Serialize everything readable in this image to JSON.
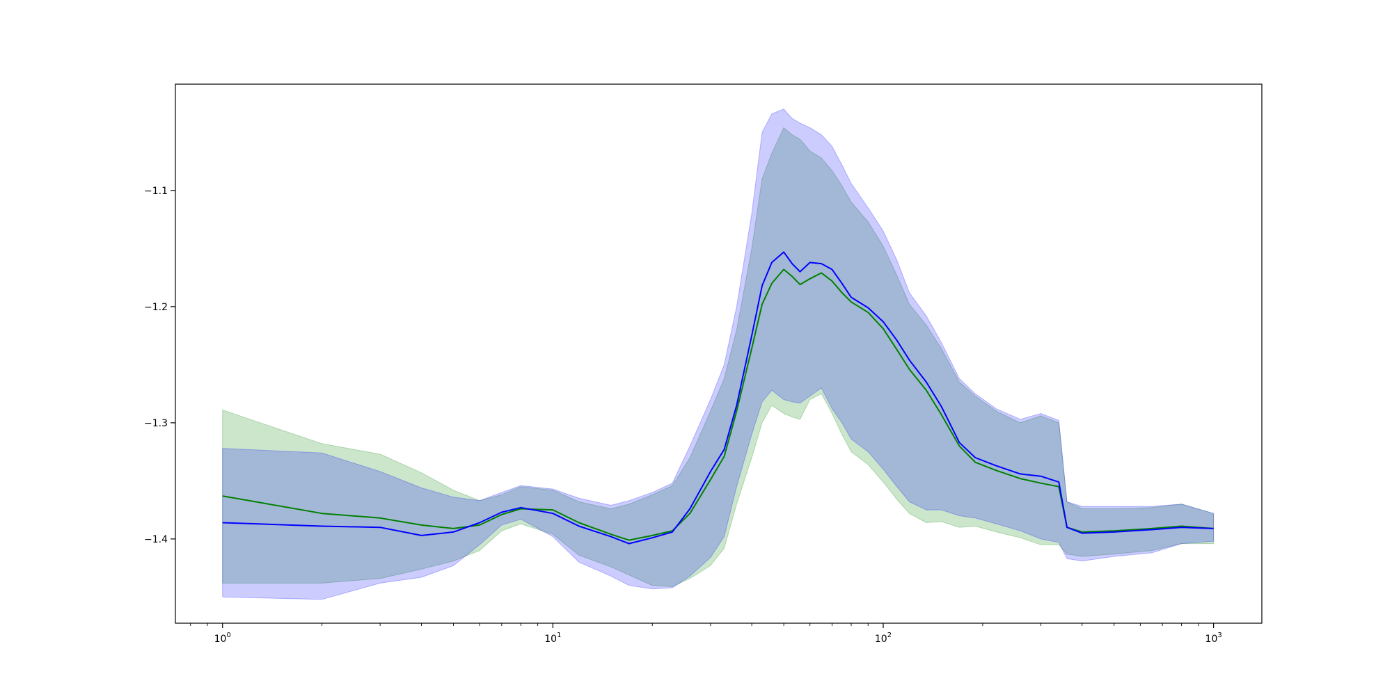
{
  "chart_data": {
    "type": "line",
    "title": "",
    "xlabel": "",
    "ylabel": "",
    "x_scale": "log",
    "xlim": [
      0.72,
      1400
    ],
    "ylim": [
      -1.4725,
      -1.0085
    ],
    "grid": false,
    "legend": "none",
    "x_ticks": [
      {
        "value": 1,
        "base": "10",
        "exp": "0"
      },
      {
        "value": 10,
        "base": "10",
        "exp": "1"
      },
      {
        "value": 100,
        "base": "10",
        "exp": "2"
      },
      {
        "value": 1000,
        "base": "10",
        "exp": "3"
      }
    ],
    "y_ticks": [
      {
        "value": -1.1,
        "label": "−1.1"
      },
      {
        "value": -1.2,
        "label": "−1.2"
      },
      {
        "value": -1.3,
        "label": "−1.3"
      },
      {
        "value": -1.4,
        "label": "−1.4"
      }
    ],
    "x": [
      1,
      2,
      3,
      4,
      5,
      6,
      7,
      8,
      10,
      12,
      15,
      17,
      20,
      23,
      26,
      30,
      33,
      36,
      40,
      43,
      46,
      50,
      53,
      56,
      60,
      65,
      70,
      75,
      80,
      90,
      100,
      110,
      120,
      135,
      150,
      170,
      190,
      220,
      260,
      300,
      340,
      360,
      400,
      500,
      650,
      800,
      1000
    ],
    "series": [
      {
        "color": "#008000",
        "band_color": "#008000",
        "mean": [
          -1.363,
          -1.378,
          -1.382,
          -1.388,
          -1.391,
          -1.388,
          -1.379,
          -1.374,
          -1.375,
          -1.386,
          -1.396,
          -1.401,
          -1.397,
          -1.393,
          -1.378,
          -1.349,
          -1.329,
          -1.29,
          -1.236,
          -1.198,
          -1.18,
          -1.168,
          -1.174,
          -1.181,
          -1.176,
          -1.171,
          -1.178,
          -1.188,
          -1.196,
          -1.205,
          -1.219,
          -1.237,
          -1.254,
          -1.272,
          -1.293,
          -1.32,
          -1.334,
          -1.341,
          -1.348,
          -1.352,
          -1.355,
          -1.39,
          -1.394,
          -1.393,
          -1.391,
          -1.389,
          -1.391
        ],
        "upper": [
          -1.289,
          -1.318,
          -1.327,
          -1.343,
          -1.358,
          -1.367,
          -1.362,
          -1.355,
          -1.358,
          -1.368,
          -1.374,
          -1.37,
          -1.362,
          -1.354,
          -1.33,
          -1.29,
          -1.262,
          -1.22,
          -1.15,
          -1.09,
          -1.068,
          -1.046,
          -1.052,
          -1.056,
          -1.066,
          -1.072,
          -1.083,
          -1.096,
          -1.11,
          -1.127,
          -1.148,
          -1.173,
          -1.198,
          -1.216,
          -1.236,
          -1.265,
          -1.277,
          -1.29,
          -1.3,
          -1.294,
          -1.3,
          -1.368,
          -1.374,
          -1.374,
          -1.373,
          -1.37,
          -1.378
        ],
        "lower": [
          -1.438,
          -1.438,
          -1.434,
          -1.426,
          -1.419,
          -1.41,
          -1.393,
          -1.387,
          -1.396,
          -1.414,
          -1.424,
          -1.431,
          -1.44,
          -1.441,
          -1.434,
          -1.423,
          -1.408,
          -1.37,
          -1.33,
          -1.3,
          -1.285,
          -1.292,
          -1.295,
          -1.297,
          -1.28,
          -1.275,
          -1.292,
          -1.31,
          -1.325,
          -1.336,
          -1.351,
          -1.366,
          -1.378,
          -1.386,
          -1.385,
          -1.39,
          -1.389,
          -1.394,
          -1.399,
          -1.405,
          -1.405,
          -1.413,
          -1.415,
          -1.413,
          -1.41,
          -1.404,
          -1.404
        ]
      },
      {
        "color": "#0000ff",
        "band_color": "#0000ff",
        "mean": [
          -1.386,
          -1.389,
          -1.39,
          -1.397,
          -1.394,
          -1.386,
          -1.377,
          -1.373,
          -1.378,
          -1.389,
          -1.398,
          -1.404,
          -1.399,
          -1.394,
          -1.374,
          -1.342,
          -1.323,
          -1.285,
          -1.225,
          -1.182,
          -1.162,
          -1.153,
          -1.163,
          -1.17,
          -1.162,
          -1.163,
          -1.168,
          -1.18,
          -1.192,
          -1.201,
          -1.213,
          -1.229,
          -1.246,
          -1.265,
          -1.286,
          -1.317,
          -1.33,
          -1.337,
          -1.344,
          -1.346,
          -1.351,
          -1.39,
          -1.395,
          -1.394,
          -1.392,
          -1.39,
          -1.391
        ],
        "upper": [
          -1.322,
          -1.326,
          -1.342,
          -1.356,
          -1.364,
          -1.367,
          -1.36,
          -1.354,
          -1.357,
          -1.365,
          -1.371,
          -1.367,
          -1.36,
          -1.352,
          -1.32,
          -1.28,
          -1.25,
          -1.2,
          -1.12,
          -1.05,
          -1.034,
          -1.03,
          -1.038,
          -1.042,
          -1.046,
          -1.052,
          -1.062,
          -1.078,
          -1.094,
          -1.115,
          -1.135,
          -1.16,
          -1.188,
          -1.208,
          -1.231,
          -1.262,
          -1.275,
          -1.288,
          -1.297,
          -1.292,
          -1.298,
          -1.368,
          -1.372,
          -1.372,
          -1.372,
          -1.37,
          -1.378
        ],
        "lower": [
          -1.45,
          -1.452,
          -1.438,
          -1.433,
          -1.423,
          -1.405,
          -1.388,
          -1.383,
          -1.398,
          -1.42,
          -1.432,
          -1.44,
          -1.443,
          -1.442,
          -1.432,
          -1.416,
          -1.398,
          -1.355,
          -1.31,
          -1.282,
          -1.272,
          -1.28,
          -1.282,
          -1.283,
          -1.277,
          -1.27,
          -1.288,
          -1.3,
          -1.314,
          -1.325,
          -1.34,
          -1.355,
          -1.368,
          -1.375,
          -1.375,
          -1.38,
          -1.382,
          -1.387,
          -1.393,
          -1.4,
          -1.403,
          -1.417,
          -1.419,
          -1.415,
          -1.412,
          -1.404,
          -1.402
        ]
      }
    ]
  }
}
